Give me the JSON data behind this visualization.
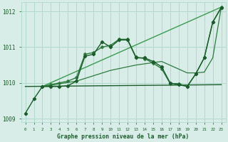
{
  "title": "Graphe pression niveau de la mer (hPa)",
  "bg_color": "#d8ede8",
  "grid_color": "#b0d8cc",
  "dark_green": "#1a5c2a",
  "mid_green": "#2d7a3e",
  "light_green": "#3a9a50",
  "ylim": [
    1008.9,
    1012.25
  ],
  "xlim": [
    -0.5,
    23.5
  ],
  "yticks": [
    1009,
    1010,
    1011,
    1012
  ],
  "xticks": [
    0,
    1,
    2,
    3,
    4,
    5,
    6,
    7,
    8,
    9,
    10,
    11,
    12,
    13,
    14,
    15,
    16,
    17,
    18,
    19,
    20,
    21,
    22,
    23
  ],
  "series1_x": [
    0,
    1,
    2,
    3,
    4,
    5,
    6,
    7,
    8,
    9,
    10,
    11,
    12,
    13,
    14,
    15,
    16,
    17,
    18,
    19,
    20,
    21,
    22,
    23
  ],
  "series1_y": [
    1009.15,
    1009.55,
    1009.9,
    1009.9,
    1009.9,
    1009.92,
    1010.05,
    1010.75,
    1010.8,
    1011.15,
    1011.0,
    1011.2,
    1011.2,
    1010.7,
    1010.7,
    1010.6,
    1010.45,
    1010.0,
    1009.95,
    1009.9,
    1010.25,
    1010.7,
    1011.7,
    1012.1
  ],
  "series2_x": [
    2,
    3,
    4,
    5,
    6,
    7,
    8,
    9,
    10,
    11,
    12,
    13,
    14,
    15,
    16,
    17,
    18,
    19,
    20,
    21,
    22,
    23
  ],
  "series2_y": [
    1009.9,
    1009.95,
    1010.0,
    1010.05,
    1010.15,
    1010.8,
    1010.85,
    1011.0,
    1011.05,
    1011.22,
    1011.22,
    1010.72,
    1010.68,
    1010.55,
    1010.4,
    1009.98,
    1009.98,
    1009.9,
    1010.25,
    1010.7,
    1011.7,
    1012.12
  ],
  "series3_x": [
    2,
    6,
    10,
    13,
    16,
    19,
    20,
    21,
    22,
    23
  ],
  "series3_y": [
    1009.9,
    1010.05,
    1010.35,
    1010.5,
    1010.6,
    1010.28,
    1010.28,
    1010.3,
    1010.7,
    1012.12
  ],
  "series4_x": [
    0,
    23
  ],
  "series4_y": [
    1009.9,
    1009.95
  ],
  "series5_x": [
    2,
    23
  ],
  "series5_y": [
    1009.9,
    1012.12
  ]
}
